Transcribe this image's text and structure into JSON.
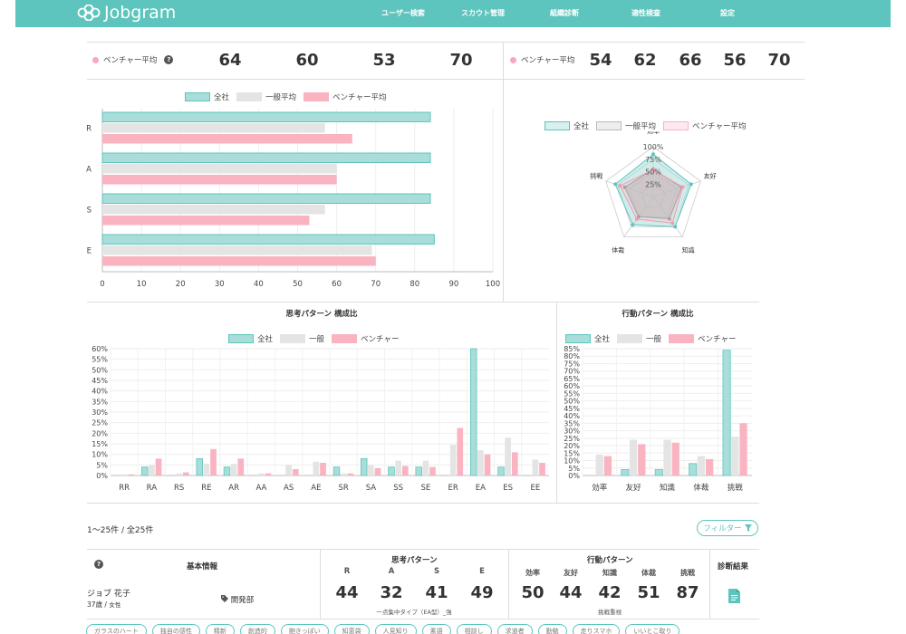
{
  "app": {
    "name": "Jobgram"
  },
  "nav": [
    "ユーザー検索",
    "スカウト管理",
    "組織診断",
    "適性検査",
    "設定"
  ],
  "averages": {
    "label": "ベンチャー平均",
    "left_values": [
      "64",
      "60",
      "53",
      "70"
    ],
    "right_values": [
      "54",
      "62",
      "66",
      "56",
      "70"
    ]
  },
  "colors": {
    "all": "#a9ddd9",
    "general": "#e4e4e4",
    "venture": "#f9b3c1",
    "accent": "#5dc5bd"
  },
  "legend_bar": [
    "全社",
    "一般平均",
    "ベンチャー平均"
  ],
  "legend_short": [
    "全社",
    "一般",
    "ベンチャー"
  ],
  "chart_data": [
    {
      "type": "bar",
      "orientation": "horizontal",
      "categories": [
        "R",
        "A",
        "S",
        "E"
      ],
      "series": [
        {
          "name": "全社",
          "values": [
            84,
            84,
            84,
            85
          ]
        },
        {
          "name": "一般平均",
          "values": [
            57,
            60,
            57,
            69
          ]
        },
        {
          "name": "ベンチャー平均",
          "values": [
            64,
            60,
            53,
            70
          ]
        }
      ],
      "xlim": [
        0,
        100
      ],
      "xticks": [
        "0",
        "10",
        "20",
        "30",
        "40",
        "50",
        "60",
        "70",
        "80",
        "90",
        "100"
      ],
      "legend": "top"
    },
    {
      "type": "radar",
      "axes": [
        "効率",
        "友好",
        "知識",
        "体裁",
        "挑戦"
      ],
      "series": [
        {
          "name": "全社",
          "values": [
            85,
            80,
            75,
            70,
            80
          ]
        },
        {
          "name": "一般平均",
          "values": [
            55,
            60,
            55,
            50,
            60
          ]
        },
        {
          "name": "ベンチャー平均",
          "values": [
            54,
            62,
            66,
            56,
            70
          ]
        }
      ],
      "rticks": [
        "25%",
        "50%",
        "75%",
        "100%"
      ],
      "legend": "top"
    },
    {
      "type": "bar",
      "title": "思考パターン 構成比",
      "categories": [
        "RR",
        "RA",
        "RS",
        "RE",
        "AR",
        "AA",
        "AS",
        "AE",
        "SR",
        "SA",
        "SS",
        "SE",
        "ER",
        "EA",
        "ES",
        "EE"
      ],
      "series": [
        {
          "name": "全社",
          "values": [
            0,
            4,
            0,
            8,
            4,
            0,
            0,
            0,
            4,
            8,
            4,
            4,
            0,
            60,
            4,
            0
          ]
        },
        {
          "name": "一般",
          "values": [
            0.5,
            5,
            1,
            5.5,
            5.5,
            1,
            5,
            6.5,
            1,
            5,
            7,
            7,
            14.5,
            12,
            18,
            7.5
          ]
        },
        {
          "name": "ベンチャー",
          "values": [
            0.5,
            8,
            1.5,
            12.5,
            8,
            1,
            3,
            6,
            1,
            3.5,
            4.5,
            4,
            22.5,
            10,
            11,
            6
          ]
        }
      ],
      "ylim": [
        0,
        60
      ],
      "yticks": [
        "0%",
        "5%",
        "10%",
        "15%",
        "20%",
        "25%",
        "30%",
        "35%",
        "40%",
        "45%",
        "50%",
        "55%",
        "60%"
      ],
      "legend": "top"
    },
    {
      "type": "bar",
      "title": "行動パターン 構成比",
      "categories": [
        "効率",
        "友好",
        "知識",
        "体裁",
        "挑戦"
      ],
      "series": [
        {
          "name": "全社",
          "values": [
            0,
            4,
            4,
            8,
            84
          ]
        },
        {
          "name": "一般",
          "values": [
            14,
            24,
            24,
            13,
            26
          ]
        },
        {
          "name": "ベンチャー",
          "values": [
            13,
            21,
            22,
            11,
            35
          ]
        }
      ],
      "ylim": [
        0,
        85
      ],
      "yticks": [
        "0%",
        "5%",
        "10%",
        "15%",
        "20%",
        "25%",
        "30%",
        "35%",
        "40%",
        "45%",
        "50%",
        "55%",
        "60%",
        "65%",
        "70%",
        "75%",
        "80%",
        "85%"
      ],
      "legend": "top"
    }
  ],
  "list": {
    "count": "1〜25件 / 全25件",
    "filter_label": "フィルター",
    "headers": {
      "basic": "基本情報",
      "thinking": "思考パターン",
      "behavior": "行動パターン",
      "result": "診断結果"
    },
    "thinking_cols": [
      "R",
      "A",
      "S",
      "E"
    ],
    "behavior_cols": [
      "効率",
      "友好",
      "知識",
      "体裁",
      "挑戦"
    ],
    "row": {
      "name": "ジョブ 花子",
      "age": "37歳",
      "gender": "女性",
      "department": "開発部",
      "thinking_values": [
        "44",
        "32",
        "41",
        "49"
      ],
      "thinking_type": "一点集中タイプ（EA型）_強",
      "behavior_values": [
        "50",
        "44",
        "42",
        "51",
        "87"
      ],
      "behavior_type": "挑戦重視"
    },
    "tags": [
      "ガラスのハート",
      "独自の感性",
      "精新",
      "創造的",
      "飽きっぽい",
      "知恵袋",
      "人見知り",
      "素語",
      "相談し",
      "求道者",
      "勤勉",
      "走りスマホ",
      "いいとこ取り"
    ]
  }
}
